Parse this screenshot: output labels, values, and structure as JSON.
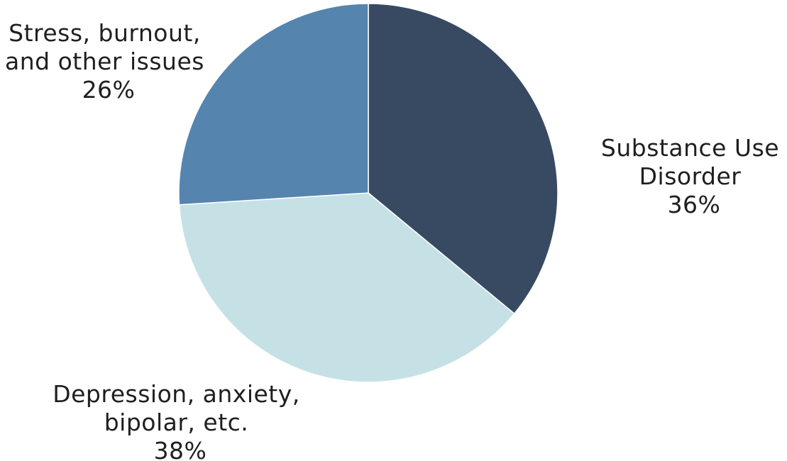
{
  "chart_data": {
    "type": "pie",
    "title": "",
    "slices": [
      {
        "label_lines": [
          "Substance Use",
          "Disorder"
        ],
        "percent_label": "36%",
        "value": 36,
        "color": "#374a62"
      },
      {
        "label_lines": [
          "Depression, anxiety,",
          "bipolar, etc."
        ],
        "percent_label": "38%",
        "value": 38,
        "color": "#c5e1e6"
      },
      {
        "label_lines": [
          "Stress, burnout,",
          "and other issues"
        ],
        "percent_label": "26%",
        "value": 26,
        "color": "#5584af"
      }
    ],
    "start_angle": "12 o'clock",
    "direction": "clockwise",
    "legend": "none"
  }
}
